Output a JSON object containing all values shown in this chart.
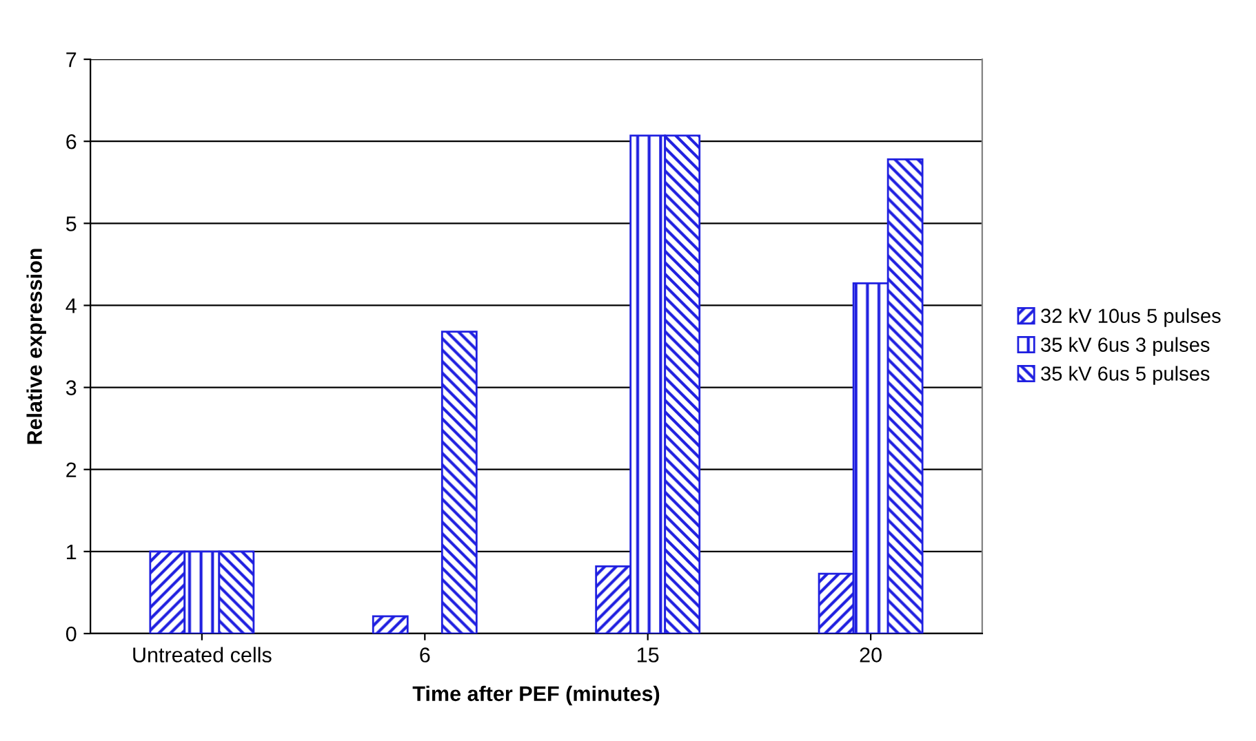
{
  "chart_data": {
    "type": "bar",
    "xlabel": "Time after PEF (minutes)",
    "ylabel": "Relative expression",
    "categories": [
      "Untreated cells",
      "6",
      "15",
      "20"
    ],
    "series": [
      {
        "name": "32 kV 10us 5 pulses",
        "color": "#1f1fe0",
        "values": [
          1.0,
          0.21,
          0.82,
          0.73
        ]
      },
      {
        "name": "35 kV 6us 3 pulses",
        "color": "#1f1fe0",
        "values": [
          1.0,
          null,
          6.07,
          4.27
        ]
      },
      {
        "name": "35 kV 6us 5 pulses",
        "color": "#1f1fe0",
        "values": [
          1.0,
          3.68,
          6.07,
          5.78
        ]
      }
    ],
    "ylim": [
      0,
      7
    ],
    "yticks": [
      0,
      1,
      2,
      3,
      4,
      5,
      6,
      7
    ],
    "grid": "y",
    "legend": "right"
  }
}
